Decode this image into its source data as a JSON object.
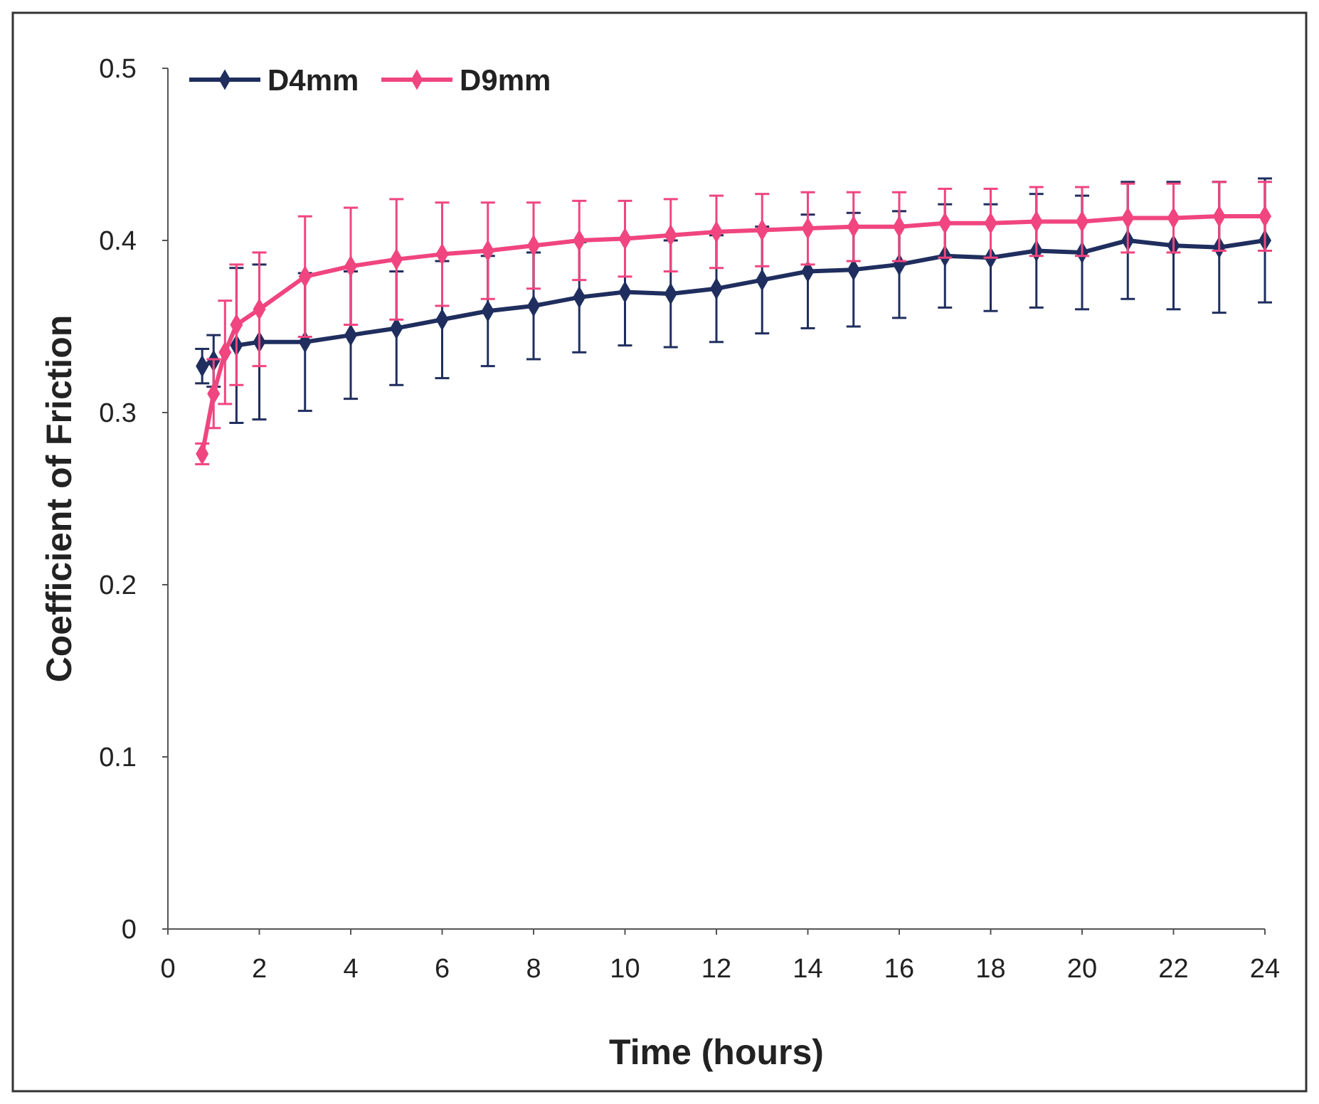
{
  "chart_data": {
    "type": "line",
    "xlabel": "Time (hours)",
    "ylabel": "Coefficient of Friction",
    "xlim": [
      0,
      24
    ],
    "xticks": [
      0,
      2,
      4,
      6,
      8,
      10,
      12,
      14,
      16,
      18,
      20,
      22,
      24
    ],
    "ylim": [
      0,
      0.5
    ],
    "yticks": [
      0,
      0.1,
      0.2,
      0.3,
      0.4,
      0.5
    ],
    "grid": false,
    "legend": "top left",
    "marker": "diamond",
    "line_style": "solid",
    "x": [
      0.75,
      1,
      1.25,
      1.5,
      2,
      3,
      4,
      5,
      6,
      7,
      8,
      9,
      10,
      11,
      12,
      13,
      14,
      15,
      16,
      17,
      18,
      19,
      20,
      21,
      22,
      23,
      24
    ],
    "series": [
      {
        "name": "D4mm",
        "color": "#1f2e5e",
        "values": [
          0.327,
          0.33,
          null,
          0.339,
          0.341,
          0.341,
          0.345,
          0.349,
          0.354,
          0.359,
          0.362,
          0.367,
          0.37,
          0.369,
          0.372,
          0.377,
          0.382,
          0.383,
          0.386,
          0.391,
          0.39,
          0.394,
          0.393,
          0.4,
          0.397,
          0.396,
          0.4
        ],
        "errors": [
          0.01,
          0.015,
          null,
          0.045,
          0.045,
          0.04,
          0.037,
          0.033,
          0.034,
          0.032,
          0.031,
          0.032,
          0.031,
          0.031,
          0.031,
          0.031,
          0.033,
          0.033,
          0.031,
          0.03,
          0.031,
          0.033,
          0.033,
          0.034,
          0.037,
          0.038,
          0.036
        ]
      },
      {
        "name": "D9mm",
        "color": "#f0457f",
        "values": [
          0.276,
          0.311,
          0.335,
          0.351,
          0.36,
          0.379,
          0.385,
          0.389,
          0.392,
          0.394,
          0.397,
          0.4,
          0.401,
          0.403,
          0.405,
          0.406,
          0.407,
          0.408,
          0.408,
          0.41,
          0.41,
          0.411,
          0.411,
          0.413,
          0.413,
          0.414,
          0.414
        ],
        "errors": [
          0.006,
          0.02,
          0.03,
          0.035,
          0.033,
          0.035,
          0.034,
          0.035,
          0.03,
          0.028,
          0.025,
          0.023,
          0.022,
          0.021,
          0.021,
          0.021,
          0.021,
          0.02,
          0.02,
          0.02,
          0.02,
          0.02,
          0.02,
          0.02,
          0.02,
          0.02,
          0.02
        ]
      }
    ]
  }
}
